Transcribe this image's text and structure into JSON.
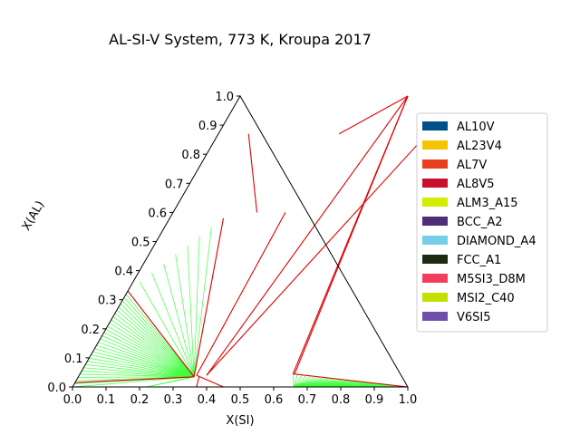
{
  "chart_data": {
    "type": "ternary",
    "title": "AL-SI-V System, 773 K, Kroupa 2017",
    "xlabel": "X(SI)",
    "ylabel": "X(AL)",
    "xlim": [
      0,
      1
    ],
    "ylim": [
      0,
      1
    ],
    "xticks": [
      "0.0",
      "0.1",
      "0.2",
      "0.3",
      "0.4",
      "0.5",
      "0.6",
      "0.7",
      "0.8",
      "0.9",
      "1.0"
    ],
    "yticks": [
      "0.0",
      "0.1",
      "0.2",
      "0.3",
      "0.4",
      "0.5",
      "0.6",
      "0.7",
      "0.8",
      "0.9",
      "1.0"
    ],
    "legend_position": "right",
    "legend": [
      {
        "name": "AL10V",
        "color": "#00508a"
      },
      {
        "name": "AL23V4",
        "color": "#f5c400"
      },
      {
        "name": "AL7V",
        "color": "#e8401c"
      },
      {
        "name": "AL8V5",
        "color": "#c8102e"
      },
      {
        "name": "ALM3_A15",
        "color": "#d4ec00"
      },
      {
        "name": "BCC_A2",
        "color": "#4e2f77"
      },
      {
        "name": "DIAMOND_A4",
        "color": "#76cde8"
      },
      {
        "name": "FCC_A1",
        "color": "#1e2a12"
      },
      {
        "name": "M5SI3_D8M",
        "color": "#f23e5c"
      },
      {
        "name": "MSI2_C40",
        "color": "#c4e000"
      },
      {
        "name": "V6SI5",
        "color": "#6e4ea8"
      }
    ],
    "boundary_color": "#e00000",
    "tieline_color": "#3dff3d",
    "three_phase_triangles": [
      [
        [
          0.0,
          0.0
        ],
        [
          0.345,
          0.035
        ],
        [
          0.0,
          1.0
        ]
      ],
      [
        [
          0.345,
          0.035
        ],
        [
          0.0,
          1.0
        ],
        [
          0.35,
          0.04
        ]
      ],
      [
        [
          0.0,
          0.0
        ],
        [
          0.345,
          0.035
        ],
        [
          0.22,
          0.0
        ]
      ],
      [
        [
          0.35,
          0.04
        ],
        [
          0.635,
          0.045
        ],
        [
          0.5,
          1.0
        ]
      ],
      [
        [
          0.35,
          0.04
        ],
        [
          0.62,
          0.0
        ],
        [
          0.635,
          0.045
        ]
      ],
      [
        [
          0.635,
          0.045
        ],
        [
          1.0,
          0.0
        ],
        [
          0.62,
          0.0
        ]
      ]
    ],
    "boundary_lines": [
      [
        [
          0.0,
          0.0
        ],
        [
          0.22,
          0.0
        ]
      ],
      [
        [
          0.0,
          0.015
        ],
        [
          0.345,
          0.035
        ]
      ],
      [
        [
          0.345,
          0.035
        ],
        [
          0.0,
          0.33
        ]
      ],
      [
        [
          0.345,
          0.035
        ],
        [
          0.16,
          0.58
        ]
      ],
      [
        [
          0.35,
          0.04
        ],
        [
          0.335,
          0.6
        ]
      ],
      [
        [
          0.36,
          0.035
        ],
        [
          0.37,
          0.0
        ]
      ],
      [
        [
          0.35,
          0.04
        ],
        [
          0.45,
          0.0
        ]
      ],
      [
        [
          0.38,
          0.04
        ],
        [
          0.62,
          0.86
        ]
      ],
      [
        [
          0.5,
          1.0
        ],
        [
          0.635,
          0.045
        ]
      ],
      [
        [
          0.5,
          1.0
        ],
        [
          0.64,
          0.045
        ]
      ],
      [
        [
          0.635,
          0.045
        ],
        [
          1.0,
          0.0
        ]
      ],
      [
        [
          0.5,
          1.0
        ],
        [
          0.38,
          0.04
        ]
      ],
      [
        [
          0.36,
          0.87
        ],
        [
          0.5,
          1.0
        ]
      ],
      [
        [
          0.09,
          0.87
        ],
        [
          0.25,
          0.6
        ]
      ]
    ],
    "tie_line_regions": [
      {
        "from_a": [
          0.0,
          0.33
        ],
        "from_b": [
          0.0,
          0.0
        ],
        "to": [
          0.345,
          0.035
        ],
        "count": 30
      },
      {
        "from_a": [
          0.22,
          0.0
        ],
        "from_b": [
          0.345,
          0.035
        ],
        "to": [
          0.345,
          0.035
        ],
        "count": 8
      },
      {
        "from_a": [
          0.16,
          0.58
        ],
        "from_b": [
          0.0,
          0.33
        ],
        "to": [
          0.345,
          0.035
        ],
        "count": 8
      },
      {
        "from_a": [
          0.635,
          0.045
        ],
        "from_b": [
          1.0,
          0.0
        ],
        "to": [
          0.66,
          0.0
        ],
        "count": 25
      }
    ]
  }
}
